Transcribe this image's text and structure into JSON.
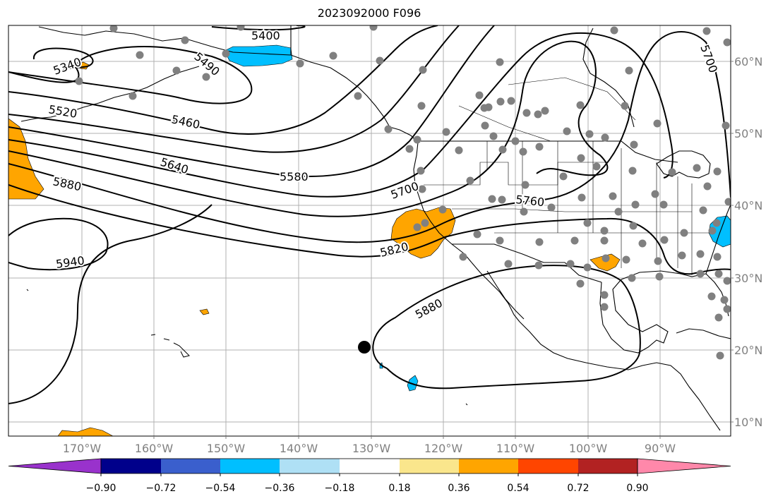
{
  "title": "2023092000 F096",
  "map": {
    "lon_ticks": [
      "170°W",
      "160°W",
      "150°W",
      "140°W",
      "130°W",
      "120°W",
      "110°W",
      "100°W",
      "90°W"
    ],
    "lat_ticks": [
      "60°N",
      "50°N",
      "40°N",
      "30°N",
      "20°N",
      "10°N"
    ],
    "contour_labels": [
      "5340",
      "5400",
      "5460",
      "5520",
      "5580",
      "5640",
      "5700",
      "5700",
      "5760",
      "5820",
      "5880",
      "5880",
      "5940",
      "5490"
    ],
    "colors": {
      "contour": "#000000",
      "grid": "#b0b0b0",
      "station": "#808080",
      "positive_anomaly": "#ffa500",
      "negative_anomaly": "#00bfff"
    }
  },
  "colorbar": {
    "ticks": [
      "−0.90",
      "−0.72",
      "−0.54",
      "−0.36",
      "−0.18",
      "0.18",
      "0.36",
      "0.54",
      "0.72",
      "0.90"
    ],
    "colors": [
      "#9932cc",
      "#00008b",
      "#3a5fcd",
      "#00bfff",
      "#afe0f5",
      "#ffffff",
      "#fae68c",
      "#ffa500",
      "#ff4500",
      "#b22222",
      "#ff88aa"
    ]
  }
}
